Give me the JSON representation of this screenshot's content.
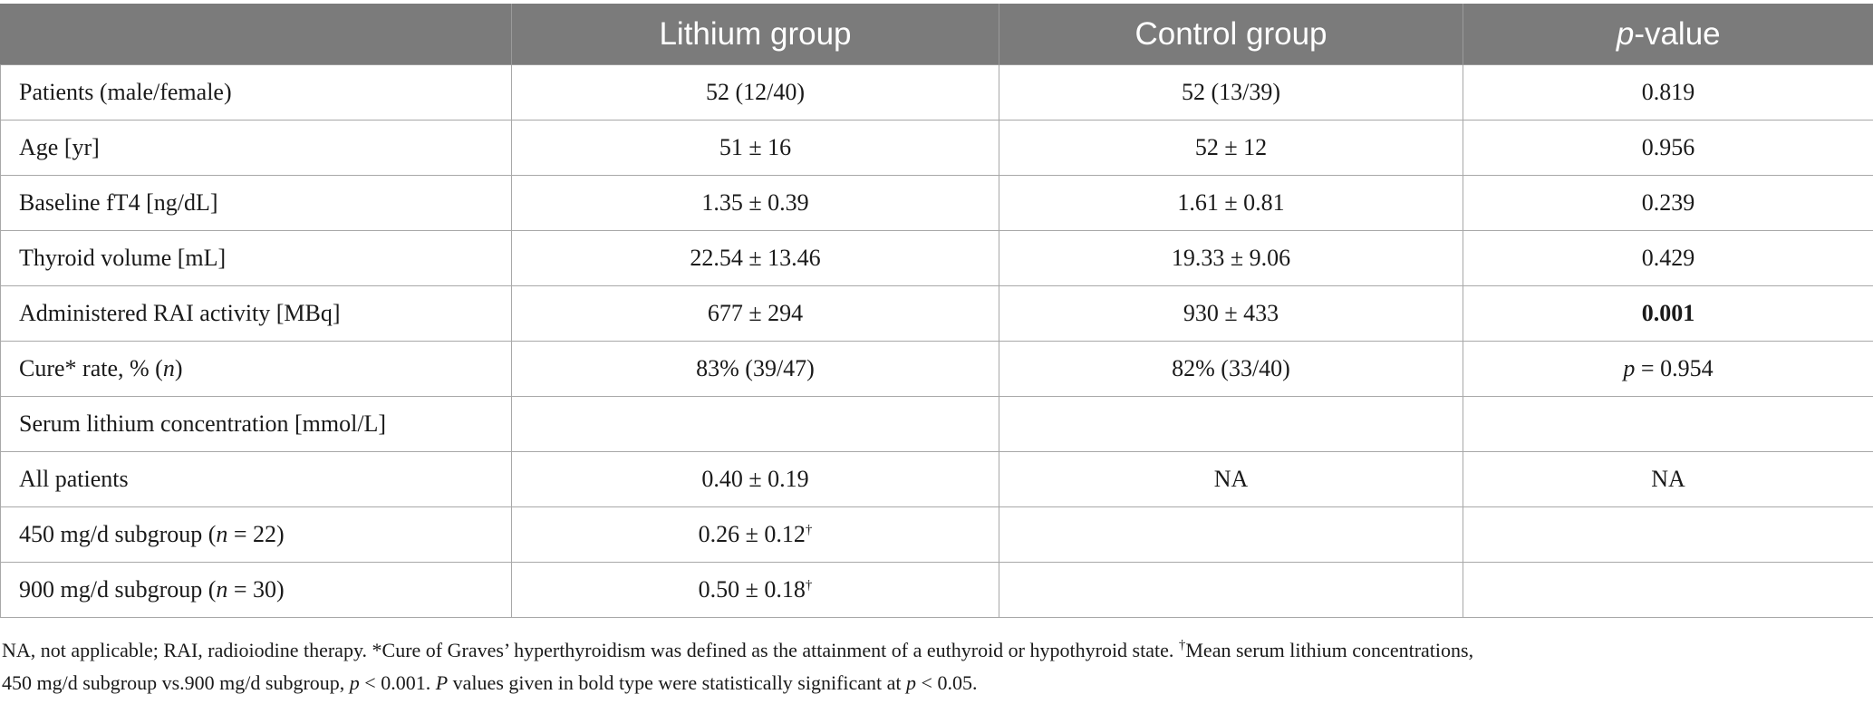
{
  "header": {
    "col0": "",
    "col1": "Lithium group",
    "col2": "Control group",
    "col3_italic": "p",
    "col3_rest": "-value"
  },
  "rows": [
    {
      "label": "Patients (male/female)",
      "lithium": "52 (12/40)",
      "control": "52 (13/39)",
      "p": "0.819"
    },
    {
      "label": "Age [yr]",
      "lithium": "51 ± 16",
      "control": "52 ± 12",
      "p": "0.956"
    },
    {
      "label": "Baseline fT4 [ng/dL]",
      "lithium": "1.35 ± 0.39",
      "control": "1.61 ± 0.81",
      "p": "0.239"
    },
    {
      "label": "Thyroid volume [mL]",
      "lithium": "22.54 ± 13.46",
      "control": "19.33 ± 9.06",
      "p": "0.429"
    },
    {
      "label": "Administered RAI activity [MBq]",
      "lithium": "677 ± 294",
      "control": "930 ± 433",
      "p": "0.001",
      "p_bold": true
    },
    {
      "label_pre": "Cure* rate, % (",
      "label_italic": "n",
      "label_post": ")",
      "lithium": "83% (39/47)",
      "control": "82% (33/40)",
      "p_italic": "p",
      "p_rest": " = 0.954"
    },
    {
      "label": "Serum lithium concentration [mmol/L]",
      "lithium": "",
      "control": "",
      "p": ""
    },
    {
      "label": "All patients",
      "lithium": "0.40 ± 0.19",
      "control": "NA",
      "p": "NA"
    },
    {
      "label_pre": "450 mg/d subgroup (",
      "label_italic": "n",
      "label_post": " = 22)",
      "lithium": "0.26 ± 0.12",
      "lithium_sup": "†",
      "control": "",
      "p": ""
    },
    {
      "label_pre": "900 mg/d subgroup (",
      "label_italic": "n",
      "label_post": " = 30)",
      "lithium": "0.50 ± 0.18",
      "lithium_sup": "†",
      "control": "",
      "p": ""
    }
  ],
  "notes": {
    "line1_a": "NA, not applicable; RAI, radioiodine therapy. *Cure of Graves’ hyperthyroidism was defined as the attainment of a euthyroid or hypothyroid state. ",
    "line1_sup": "†",
    "line1_b": "Mean serum lithium concentrations,",
    "line2_a": "450 mg/d subgroup vs.900 mg/d subgroup, ",
    "line2_p1": "p",
    "line2_b": " < 0.001. ",
    "line2_P": "P",
    "line2_c": " values given in bold type were statistically significant at ",
    "line2_p2": "p",
    "line2_d": " < 0.05."
  }
}
